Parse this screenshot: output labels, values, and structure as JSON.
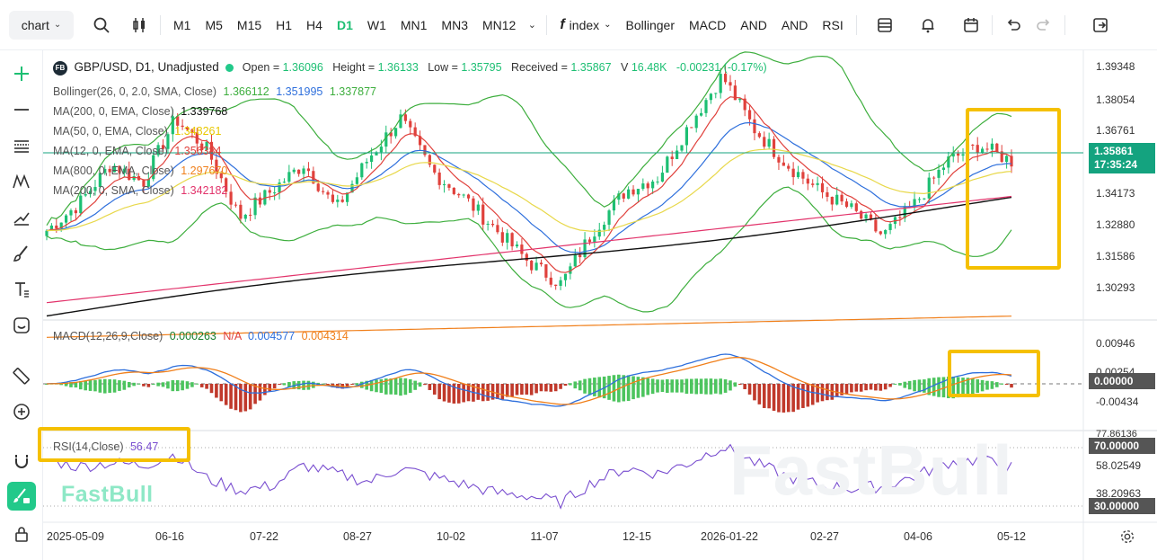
{
  "toolbar": {
    "chart_label": "chart",
    "timeframes": [
      "M1",
      "M5",
      "M15",
      "H1",
      "H4",
      "D1",
      "W1",
      "MN1",
      "MN3",
      "MN12"
    ],
    "active_timeframe": "D1",
    "index_label": "index",
    "indicators": [
      "Bollinger",
      "MACD",
      "AND",
      "AND",
      "RSI"
    ]
  },
  "legend": {
    "symbol_badge": "FB",
    "symbol": "GBP/USD, D1, Unadjusted",
    "open_label": "Open = ",
    "open": "1.36096",
    "height_label": "Height = ",
    "height": "1.36133",
    "low_label": "Low = ",
    "low": "1.35795",
    "received_label": "Received = ",
    "received": "1.35867",
    "volume_label": "V",
    "volume": "16.48K",
    "change": "-0.00231 (-0.17%)",
    "bollinger_label": "Bollinger(26, 0, 2.0, SMA, Close)",
    "bollinger_upper": "1.366112",
    "bollinger_mid": "1.351995",
    "bollinger_lower": "1.337877",
    "ma200e_label": "MA(200, 0, EMA, Close)",
    "ma200e_val": "1.339768",
    "ma50_label": "MA(50, 0, EMA, Close)",
    "ma50_val": "1.348261",
    "ma12_label": "MA(12, 0, EMA, Close)",
    "ma12_val": "1.356384",
    "ma800_label": "MA(800, 0, EMA, Close)",
    "ma800_val": "1.297670",
    "ma200s_label": "MA(200, 0, SMA, Close)",
    "ma200s_val": "1.342182",
    "macd_label": "MACD(12,26,9,Close)",
    "macd_hist": "0.000263",
    "macd_na": "N/A",
    "macd_line": "0.004577",
    "macd_signal": "0.004314",
    "rsi_label": "RSI(14,Close)",
    "rsi_val": "56.47"
  },
  "price_axis": [
    "1.39348",
    "1.38054",
    "1.36761",
    "1.34173",
    "1.32880",
    "1.31586",
    "1.30293"
  ],
  "current_price": "1.35861",
  "countdown": "17:35:24",
  "macd_axis": [
    "0.00946",
    "0.00254",
    "-0.00434"
  ],
  "macd_zero": "0.00000",
  "rsi_axis_top": "77.86136",
  "rsi_70": "70.00000",
  "rsi_mid": "58.02549",
  "rsi_low": "38.20963",
  "rsi_30": "30.00000",
  "date_axis": [
    "2025-05-09",
    "06-16",
    "07-22",
    "08-27",
    "10-02",
    "11-07",
    "12-15",
    "2026-01-22",
    "02-27",
    "04-06",
    "05-12"
  ],
  "watermark": "FastBull",
  "colors": {
    "up": "#1dbf73",
    "down": "#e0413c",
    "highlight": "#f5c000",
    "bb": "#3dae3d",
    "mid": "#2e6fdc"
  },
  "chart_data": {
    "type": "candlestick",
    "symbol": "GBP/USD",
    "timeframe": "D1",
    "ylim": [
      1.2965,
      1.3975
    ],
    "x": [
      "2025-05-09",
      "06-16",
      "07-22",
      "08-27",
      "10-02",
      "11-07",
      "12-15",
      "2026-01-22",
      "02-27",
      "04-06",
      "05-12"
    ],
    "close_path": [
      1.33,
      1.34,
      1.355,
      1.348,
      1.372,
      1.36,
      1.335,
      1.345,
      1.355,
      1.338,
      1.357,
      1.372,
      1.352,
      1.342,
      1.33,
      1.318,
      1.31,
      1.33,
      1.345,
      1.35,
      1.37,
      1.388,
      1.368,
      1.355,
      1.345,
      1.338,
      1.328,
      1.34,
      1.356,
      1.362,
      1.356
    ],
    "rsi": [
      62,
      57,
      60,
      58,
      66,
      48,
      40,
      43,
      58,
      52,
      46,
      56,
      50,
      44,
      38,
      36,
      31,
      46,
      56,
      52,
      60,
      72,
      60,
      50,
      44,
      41,
      43,
      50,
      60,
      62,
      56.47
    ]
  }
}
